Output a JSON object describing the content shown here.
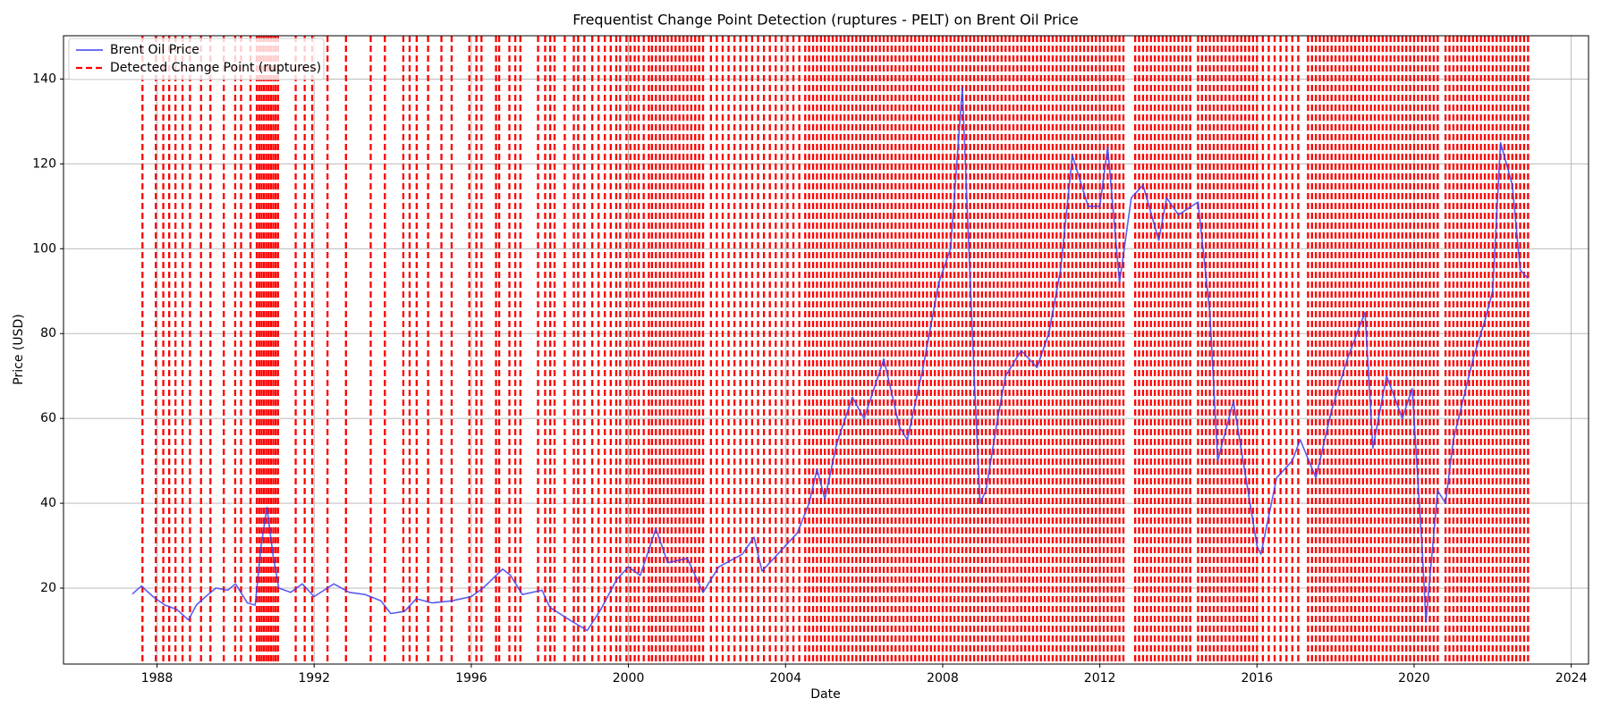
{
  "chart_data": {
    "type": "line",
    "title": "Frequentist Change Point Detection (ruptures - PELT) on Brent Oil Price",
    "x_label": "Date",
    "y_label": "Price (USD)",
    "xlim": [
      1985.62,
      2024.44
    ],
    "ylim": [
      2.1,
      150.2
    ],
    "xticks": [
      1988,
      1992,
      1996,
      2000,
      2004,
      2008,
      2012,
      2016,
      2020,
      2024
    ],
    "yticks": [
      20,
      40,
      60,
      80,
      100,
      120,
      140
    ],
    "grid": true,
    "legend": "upper left",
    "x": [
      1987.37,
      1987.6,
      1987.9,
      1988.2,
      1988.5,
      1988.8,
      1989.0,
      1989.3,
      1989.5,
      1989.8,
      1990.0,
      1990.3,
      1990.5,
      1990.65,
      1990.8,
      1990.95,
      1991.1,
      1991.4,
      1991.7,
      1992.0,
      1992.5,
      1992.9,
      1993.3,
      1993.7,
      1993.95,
      1994.3,
      1994.6,
      1995.0,
      1995.5,
      1996.0,
      1996.3,
      1996.8,
      1997.0,
      1997.3,
      1997.8,
      1998.0,
      1998.5,
      1998.95,
      1999.3,
      1999.7,
      2000.0,
      2000.3,
      2000.7,
      2001.0,
      2001.5,
      2001.9,
      2002.3,
      2002.9,
      2003.2,
      2003.4,
      2003.9,
      2004.3,
      2004.6,
      2004.8,
      2005.0,
      2005.3,
      2005.7,
      2006.0,
      2006.5,
      2006.9,
      2007.1,
      2007.5,
      2007.9,
      2008.2,
      2008.5,
      2008.6,
      2008.8,
      2008.95,
      2009.1,
      2009.4,
      2009.6,
      2010.0,
      2010.4,
      2010.7,
      2011.0,
      2011.3,
      2011.7,
      2012.0,
      2012.2,
      2012.5,
      2012.8,
      2013.1,
      2013.5,
      2013.7,
      2014.0,
      2014.5,
      2014.8,
      2015.0,
      2015.4,
      2015.7,
      2016.0,
      2016.1,
      2016.5,
      2016.9,
      2017.1,
      2017.5,
      2017.9,
      2018.3,
      2018.75,
      2018.95,
      2019.3,
      2019.7,
      2019.95,
      2020.2,
      2020.3,
      2020.6,
      2020.8,
      2021.0,
      2021.5,
      2021.8,
      2022.0,
      2022.2,
      2022.5,
      2022.7,
      2022.9
    ],
    "series": [
      {
        "name": "Brent Oil Price",
        "color": "#4040f0",
        "values": [
          18.6,
          20.5,
          18,
          16,
          15,
          12.5,
          16,
          18.5,
          20,
          19.5,
          21,
          16.5,
          16,
          30,
          39,
          28,
          20,
          19,
          21,
          18,
          21,
          19,
          18.5,
          17,
          14,
          14.5,
          17.5,
          16.5,
          17,
          18,
          20,
          24.5,
          23,
          18.5,
          19.5,
          15.5,
          12.5,
          10,
          15,
          22,
          25,
          23,
          34,
          26,
          27,
          19,
          25,
          28,
          32,
          24,
          29,
          33,
          40,
          48,
          41,
          54,
          65,
          60,
          74,
          58,
          55,
          72,
          92,
          100,
          138,
          115,
          70,
          40,
          43,
          60,
          70,
          76,
          72,
          80,
          95,
          122,
          110,
          110,
          124,
          92,
          112,
          115,
          102,
          112,
          108,
          111,
          85,
          50,
          64,
          47,
          30,
          28,
          46,
          50,
          55,
          46,
          62,
          74,
          85,
          53,
          70,
          60,
          67,
          30,
          12,
          43,
          40,
          55,
          74,
          83,
          90,
          125,
          115,
          95,
          93
        ]
      }
    ],
    "change_points": {
      "name": "Detected Change Point (ruptures)",
      "color": "#ff0000",
      "x": [
        1987.63,
        1987.97,
        1988.16,
        1988.31,
        1988.47,
        1988.65,
        1988.84,
        1989.12,
        1989.36,
        1989.7,
        1989.99,
        1990.14,
        1990.38,
        1990.54,
        1990.6,
        1990.66,
        1990.72,
        1990.78,
        1990.84,
        1990.9,
        1990.96,
        1991.02,
        1991.08,
        1991.53,
        1991.76,
        1991.95,
        1992.34,
        1992.81,
        1993.44,
        1993.8,
        1994.27,
        1994.43,
        1994.61,
        1994.9,
        1995.24,
        1995.5,
        1995.95,
        1996.13,
        1996.26,
        1996.63,
        1996.71,
        1996.97,
        1997.12,
        1997.25,
        1997.7,
        1997.88,
        1998.01,
        1998.12,
        1998.38,
        1998.61,
        1998.72,
        1998.88,
        1999.08,
        1999.24,
        1999.4,
        1999.55,
        1999.69,
        1999.79,
        1999.95,
        2000.05,
        2000.16,
        2000.26,
        2000.39,
        2000.52,
        2000.6,
        2000.7,
        2000.8,
        2000.9,
        2001.0,
        2001.1,
        2001.2,
        2001.3,
        2001.4,
        2001.5,
        2001.6,
        2001.7,
        2001.8,
        2001.9,
        2002.1,
        2002.25,
        2002.4,
        2002.55,
        2002.7,
        2002.85,
        2003.0,
        2003.15,
        2003.3,
        2003.45,
        2003.6,
        2003.75,
        2003.9,
        2004.05,
        2004.2,
        2004.35,
        2004.5,
        2004.6,
        2004.7,
        2004.8,
        2004.9,
        2005.0,
        2005.1,
        2005.2,
        2005.3,
        2005.4,
        2005.5,
        2005.6,
        2005.7,
        2005.8,
        2005.9,
        2006.0,
        2006.1,
        2006.2,
        2006.3,
        2006.4,
        2006.5,
        2006.6,
        2006.7,
        2006.8,
        2006.9,
        2007.0,
        2007.1,
        2007.2,
        2007.3,
        2007.4,
        2007.5,
        2007.6,
        2007.7,
        2007.8,
        2007.9,
        2008.0,
        2008.1,
        2008.2,
        2008.3,
        2008.4,
        2008.5,
        2008.6,
        2008.7,
        2008.8,
        2008.9,
        2009.0,
        2009.1,
        2009.2,
        2009.3,
        2009.4,
        2009.5,
        2009.6,
        2009.7,
        2009.8,
        2009.9,
        2010.0,
        2010.1,
        2010.2,
        2010.3,
        2010.4,
        2010.5,
        2010.6,
        2010.7,
        2010.8,
        2010.9,
        2011.0,
        2011.1,
        2011.2,
        2011.3,
        2011.4,
        2011.5,
        2011.6,
        2011.7,
        2011.8,
        2011.9,
        2012.0,
        2012.1,
        2012.2,
        2012.3,
        2012.4,
        2012.5,
        2012.6,
        2012.9,
        2013.0,
        2013.1,
        2013.2,
        2013.3,
        2013.4,
        2013.5,
        2013.6,
        2013.7,
        2013.8,
        2013.9,
        2014.0,
        2014.1,
        2014.2,
        2014.3,
        2014.5,
        2014.6,
        2014.7,
        2014.8,
        2014.9,
        2015.0,
        2015.1,
        2015.2,
        2015.3,
        2015.4,
        2015.5,
        2015.6,
        2015.7,
        2015.8,
        2015.9,
        2016.0,
        2016.15,
        2016.3,
        2016.45,
        2016.6,
        2016.75,
        2016.9,
        2017.05,
        2017.3,
        2017.4,
        2017.5,
        2017.6,
        2017.7,
        2017.8,
        2017.9,
        2018.0,
        2018.1,
        2018.2,
        2018.3,
        2018.4,
        2018.5,
        2018.6,
        2018.7,
        2018.8,
        2018.9,
        2019.0,
        2019.1,
        2019.2,
        2019.3,
        2019.4,
        2019.5,
        2019.6,
        2019.7,
        2019.8,
        2019.9,
        2020.0,
        2020.1,
        2020.2,
        2020.3,
        2020.4,
        2020.5,
        2020.6,
        2020.8,
        2020.9,
        2021.0,
        2021.1,
        2021.2,
        2021.3,
        2021.4,
        2021.5,
        2021.6,
        2021.7,
        2021.8,
        2021.9,
        2022.0,
        2022.1,
        2022.2,
        2022.3,
        2022.4,
        2022.5,
        2022.6,
        2022.7,
        2022.8,
        2022.9
      ]
    }
  }
}
